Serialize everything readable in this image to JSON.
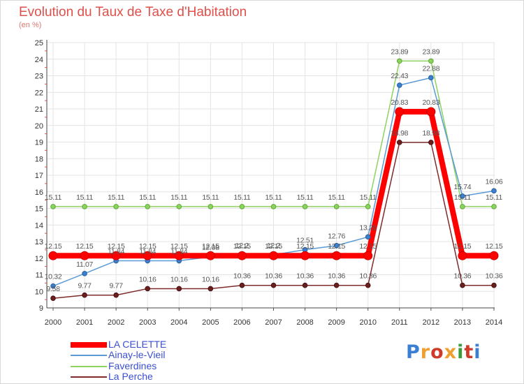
{
  "title": "Evolution du Taux de Taxe d'Habitation",
  "subtitle": "(en %)",
  "logo": {
    "text": "Proxiti",
    "colors": [
      "#3b7fd4",
      "#f0a030",
      "#d03a2a",
      "#f0a030",
      "#3b9a3a",
      "#d03a2a",
      "#3b7fd4"
    ]
  },
  "chart_data": {
    "type": "line",
    "x": [
      2000,
      2001,
      2002,
      2003,
      2004,
      2005,
      2006,
      2007,
      2008,
      2009,
      2010,
      2011,
      2012,
      2013,
      2014
    ],
    "ylim": [
      9,
      25
    ],
    "yticks": [
      9,
      10,
      11,
      12,
      13,
      14,
      15,
      16,
      17,
      18,
      19,
      20,
      21,
      22,
      23,
      24,
      25
    ],
    "grid": true,
    "legend_position": "bottom-left",
    "series": [
      {
        "name": "LA CELETTE",
        "color": "#ff0000",
        "values": [
          12.15,
          12.15,
          12.15,
          12.15,
          12.15,
          12.15,
          12.15,
          12.15,
          12.15,
          12.15,
          12.15,
          20.83,
          20.83,
          12.15,
          12.15
        ],
        "labels": [
          "12.15",
          "12.15",
          "12.15",
          "12.15",
          "12.15",
          "12.15",
          "12.15",
          "12.15",
          "12.15",
          "12.15",
          "12.15",
          "20.83",
          "20.83",
          "12.15",
          "12.15"
        ]
      },
      {
        "name": "Ainay-le-Vieil",
        "color": "#5b9bd5",
        "values": [
          10.32,
          11.07,
          11.84,
          11.84,
          11.84,
          12.08,
          12.2,
          12.2,
          12.51,
          12.76,
          13.28,
          22.43,
          22.88,
          15.74,
          16.06
        ],
        "labels": [
          "10.32",
          "11.07",
          "11.84",
          "11.84",
          "11.84",
          "12.08",
          "12.2",
          "12.2",
          "12.51",
          "12.76",
          "13.28",
          "22.43",
          "22.88",
          "15.74",
          "16.06"
        ]
      },
      {
        "name": "Faverdines",
        "color": "#8dd35f",
        "values": [
          15.11,
          15.11,
          15.11,
          15.11,
          15.11,
          15.11,
          15.11,
          15.11,
          15.11,
          15.11,
          15.11,
          23.89,
          23.89,
          15.11,
          15.11
        ],
        "labels": [
          "15.11",
          "15.11",
          "15.11",
          "15.11",
          "15.11",
          "15.11",
          "15.11",
          "15.11",
          "15.11",
          "15.11",
          "15.11",
          "23.89",
          "23.89",
          "15.11",
          "15.11"
        ]
      },
      {
        "name": "La Perche",
        "color": "#7f2b2b",
        "values": [
          9.58,
          9.77,
          9.77,
          10.16,
          10.16,
          10.16,
          10.36,
          10.36,
          10.36,
          10.36,
          10.36,
          18.98,
          18.98,
          10.36,
          10.36
        ],
        "labels": [
          "9.58",
          "9.77",
          "9.77",
          "10.16",
          "10.16",
          "10.16",
          "10.36",
          "10.36",
          "10.36",
          "10.36",
          "10.36",
          "18.98",
          "18.98",
          "10.36",
          "10.36"
        ]
      }
    ]
  }
}
